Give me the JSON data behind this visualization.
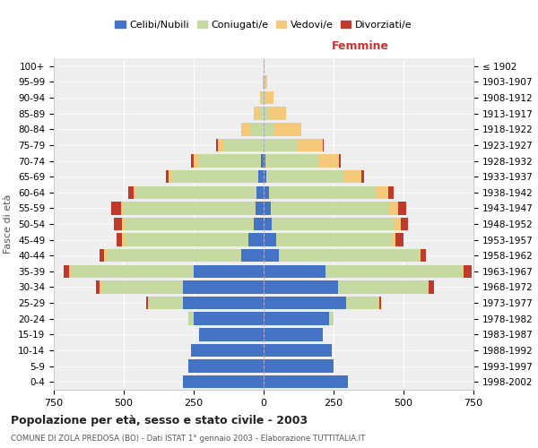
{
  "age_groups": [
    "0-4",
    "5-9",
    "10-14",
    "15-19",
    "20-24",
    "25-29",
    "30-34",
    "35-39",
    "40-44",
    "45-49",
    "50-54",
    "55-59",
    "60-64",
    "65-69",
    "70-74",
    "75-79",
    "80-84",
    "85-89",
    "90-94",
    "95-99",
    "100+"
  ],
  "birth_years": [
    "1998-2002",
    "1993-1997",
    "1988-1992",
    "1983-1987",
    "1978-1982",
    "1973-1977",
    "1968-1972",
    "1963-1967",
    "1958-1962",
    "1953-1957",
    "1948-1952",
    "1943-1947",
    "1938-1942",
    "1933-1937",
    "1928-1932",
    "1923-1927",
    "1918-1922",
    "1913-1917",
    "1908-1912",
    "1903-1907",
    "≤ 1902"
  ],
  "males": {
    "celibe": [
      290,
      270,
      260,
      230,
      250,
      290,
      290,
      250,
      80,
      55,
      35,
      30,
      25,
      20,
      10,
      0,
      0,
      0,
      0,
      0,
      0
    ],
    "coniugato": [
      0,
      0,
      0,
      0,
      20,
      120,
      290,
      440,
      480,
      440,
      460,
      470,
      430,
      310,
      220,
      145,
      45,
      15,
      5,
      0,
      0
    ],
    "vedovo": [
      0,
      0,
      0,
      0,
      0,
      5,
      5,
      5,
      10,
      10,
      10,
      10,
      10,
      10,
      20,
      20,
      35,
      20,
      8,
      2,
      0
    ],
    "divorziato": [
      0,
      0,
      0,
      0,
      0,
      5,
      15,
      20,
      15,
      20,
      30,
      35,
      20,
      10,
      10,
      5,
      0,
      0,
      0,
      0,
      0
    ]
  },
  "females": {
    "nubile": [
      300,
      250,
      245,
      210,
      235,
      295,
      265,
      220,
      55,
      45,
      30,
      25,
      20,
      10,
      5,
      0,
      0,
      0,
      0,
      0,
      0
    ],
    "coniugata": [
      0,
      0,
      0,
      0,
      15,
      115,
      320,
      490,
      500,
      415,
      435,
      420,
      380,
      280,
      190,
      120,
      40,
      15,
      5,
      2,
      0
    ],
    "vedova": [
      0,
      0,
      0,
      0,
      0,
      5,
      5,
      5,
      5,
      10,
      25,
      35,
      45,
      60,
      75,
      90,
      95,
      65,
      30,
      10,
      3
    ],
    "divorziata": [
      0,
      0,
      0,
      0,
      0,
      5,
      20,
      30,
      20,
      30,
      25,
      30,
      20,
      10,
      5,
      5,
      0,
      0,
      0,
      0,
      0
    ]
  },
  "colors": {
    "celibe_nubile": "#4472c4",
    "coniugato_a": "#c5d9a0",
    "vedovo_a": "#f5c97a",
    "divorziato_a": "#c0392b"
  },
  "xlim": 750,
  "title": "Popolazione per età, sesso e stato civile - 2003",
  "subtitle": "COMUNE DI ZOLA PREDOSA (BO) - Dati ISTAT 1° gennaio 2003 - Elaborazione TUTTITALIA.IT",
  "xlabel_right": "Femmine",
  "ylabel_left": "Fasce di età",
  "legend_labels": [
    "Celibi/Nubili",
    "Coniugati/e",
    "Vedovi/e",
    "Divorziati/e"
  ],
  "bg_color": "#ffffff",
  "plot_bg": "#eeeeee"
}
